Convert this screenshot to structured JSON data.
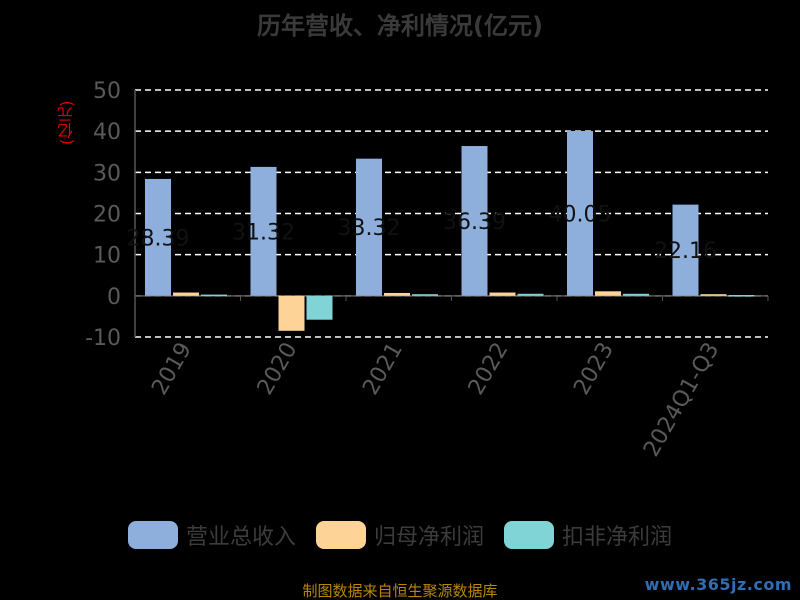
{
  "title": "历年营收、净利情况(亿元)",
  "unit_label": "(亿元)",
  "source": "制图数据来自恒生聚源数据库",
  "watermark": "www.365jz.com",
  "colors": {
    "revenue": "#8eaedc",
    "net_profit": "#fdd398",
    "deducted_profit": "#80d4d6",
    "grid": "#ffffff",
    "axis_text": "#5a5a5a"
  },
  "chart_data": {
    "type": "bar",
    "title": "历年营收、净利情况(亿元)",
    "ylabel": "(亿元)",
    "ylim": [
      -10,
      50
    ],
    "yticks": [
      -10,
      0,
      10,
      20,
      30,
      40,
      50
    ],
    "categories": [
      "2019",
      "2020",
      "2021",
      "2022",
      "2023",
      "2024Q1-Q3"
    ],
    "series": [
      {
        "name": "营业总收入",
        "values": [
          28.39,
          31.32,
          33.32,
          36.39,
          40.05,
          22.16
        ]
      },
      {
        "name": "归母净利润",
        "values": [
          0.8,
          -8.5,
          0.7,
          0.8,
          1.1,
          0.4
        ]
      },
      {
        "name": "扣非净利润",
        "values": [
          0.3,
          -5.8,
          0.4,
          0.5,
          0.5,
          0.2
        ]
      }
    ],
    "data_labels": [
      "28.39",
      "31.32",
      "33.32",
      "36.39",
      "40.05",
      "22.16"
    ],
    "grid": true,
    "legend_position": "bottom"
  }
}
